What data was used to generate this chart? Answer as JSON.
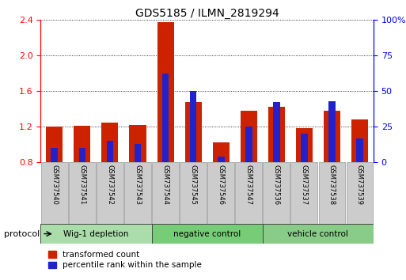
{
  "title": "GDS5185 / ILMN_2819294",
  "samples": [
    "GSM737540",
    "GSM737541",
    "GSM737542",
    "GSM737543",
    "GSM737544",
    "GSM737545",
    "GSM737546",
    "GSM737547",
    "GSM737536",
    "GSM737537",
    "GSM737538",
    "GSM737539"
  ],
  "red_values": [
    1.2,
    1.21,
    1.25,
    1.22,
    2.37,
    1.48,
    1.02,
    1.38,
    1.42,
    1.18,
    1.38,
    1.28
  ],
  "blue_values_right": [
    0.1,
    0.1,
    0.15,
    0.13,
    0.62,
    0.5,
    0.04,
    0.25,
    0.42,
    0.2,
    0.43,
    0.17
  ],
  "groups": [
    {
      "label": "Wig-1 depletion",
      "start": 0,
      "end": 4,
      "color": "#aaddaa"
    },
    {
      "label": "negative control",
      "start": 4,
      "end": 8,
      "color": "#88cc88"
    },
    {
      "label": "vehicle control",
      "start": 8,
      "end": 12,
      "color": "#66bb66"
    }
  ],
  "ylim_left": [
    0.8,
    2.4
  ],
  "yticks_left": [
    0.8,
    1.2,
    1.6,
    2.0,
    2.4
  ],
  "ylim_right": [
    0.0,
    1.0
  ],
  "yticks_right": [
    0.0,
    0.25,
    0.5,
    0.75,
    1.0
  ],
  "ytick_labels_right": [
    "0",
    "25",
    "50",
    "75",
    "100%"
  ],
  "bar_width": 0.6,
  "blue_bar_width": 0.25,
  "red_color": "#cc2200",
  "blue_color": "#2222cc",
  "grid_color": "black",
  "background_color": "white",
  "protocol_label": "protocol",
  "legend_red": "transformed count",
  "legend_blue": "percentile rank within the sample",
  "sample_box_color": "#cccccc",
  "sample_box_edge": "#999999"
}
